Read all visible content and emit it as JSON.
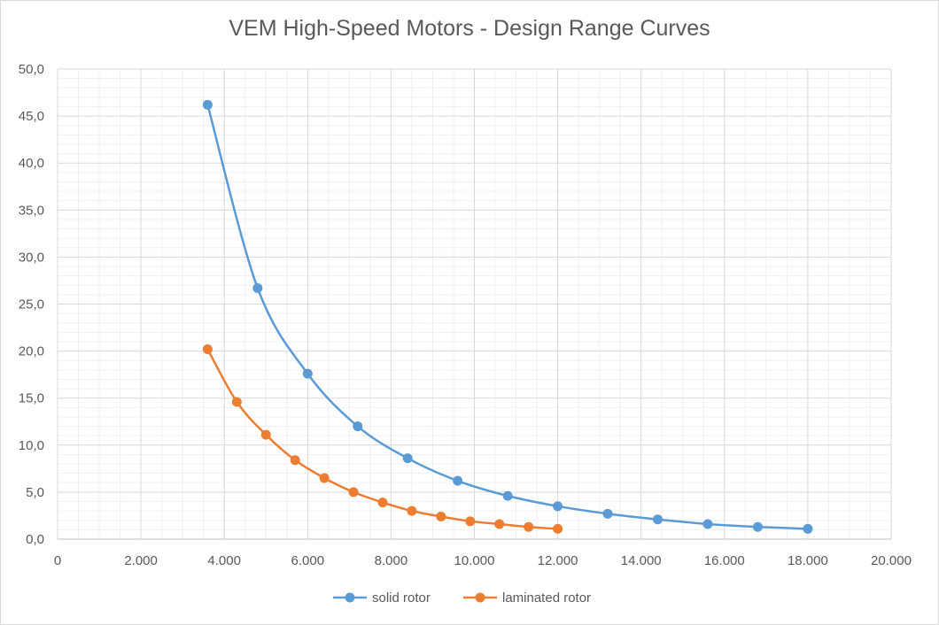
{
  "chart_data": {
    "type": "scatter",
    "title": "VEM High-Speed Motors - Design Range Curves",
    "xlabel": "",
    "ylabel": "",
    "xlim": [
      0,
      20000
    ],
    "ylim": [
      0,
      50
    ],
    "x_ticks": [
      "0",
      "2.000",
      "4.000",
      "6.000",
      "8.000",
      "10.000",
      "12.000",
      "14.000",
      "16.000",
      "18.000",
      "20.000"
    ],
    "y_ticks": [
      "0,0",
      "5,0",
      "10,0",
      "15,0",
      "20,0",
      "25,0",
      "30,0",
      "35,0",
      "40,0",
      "45,0",
      "50,0"
    ],
    "grid": true,
    "legend_position": "bottom",
    "series": [
      {
        "name": "solid rotor",
        "color": "#5b9bd5",
        "x": [
          3600,
          4800,
          6000,
          7200,
          8400,
          9600,
          10800,
          12000,
          13200,
          14400,
          15600,
          16800,
          18000
        ],
        "y": [
          46.2,
          26.7,
          17.6,
          12.0,
          8.6,
          6.2,
          4.6,
          3.5,
          2.7,
          2.1,
          1.6,
          1.3,
          1.1
        ]
      },
      {
        "name": "laminated rotor",
        "color": "#ed7d31",
        "x": [
          3600,
          4300,
          5000,
          5700,
          6400,
          7100,
          7800,
          8500,
          9200,
          9900,
          10600,
          11300,
          12000
        ],
        "y": [
          20.2,
          14.6,
          11.1,
          8.4,
          6.5,
          5.0,
          3.9,
          3.0,
          2.4,
          1.9,
          1.6,
          1.3,
          1.1
        ]
      }
    ]
  }
}
